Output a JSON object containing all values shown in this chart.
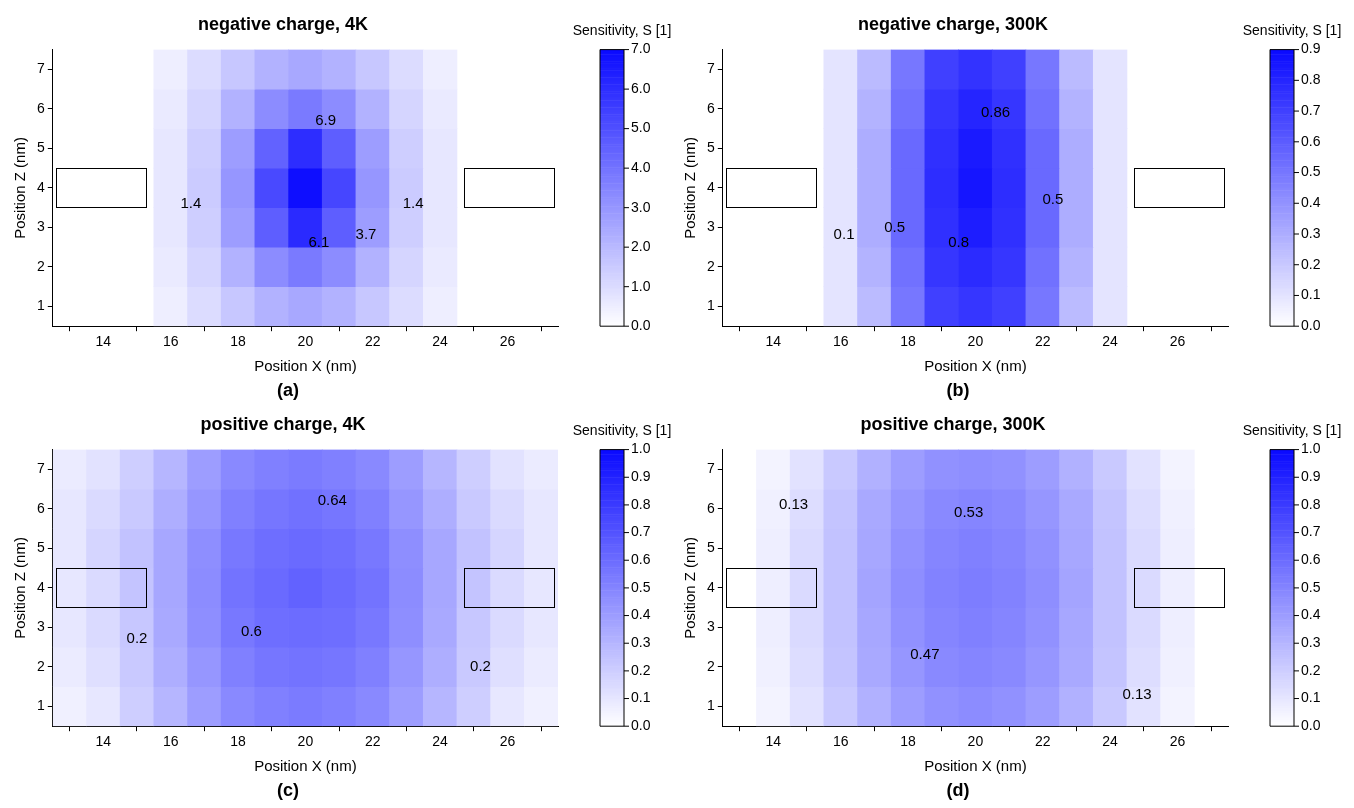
{
  "chart_data": [
    {
      "type": "heatmap",
      "title": "negative charge, 4K",
      "xlabel": "Position X (nm)",
      "ylabel": "Position Z (nm)",
      "clabel": "Sensitivity, S [1]",
      "x": [
        13,
        14,
        15,
        16,
        17,
        18,
        19,
        20,
        21,
        22,
        23,
        24,
        25,
        26,
        27
      ],
      "xlim": [
        12.5,
        27.5
      ],
      "xticks": [
        14,
        16,
        18,
        20,
        22,
        24,
        26
      ],
      "y_categories": [
        "7",
        "6",
        "5",
        "4",
        "3",
        "2",
        "1"
      ],
      "cells": [
        [
          null,
          null,
          null,
          0.5,
          1.0,
          1.6,
          2.2,
          2.5,
          2.2,
          1.6,
          1.0,
          0.5,
          null,
          null,
          null
        ],
        [
          null,
          null,
          null,
          0.6,
          1.2,
          2.2,
          3.3,
          3.8,
          3.3,
          2.2,
          1.2,
          0.6,
          null,
          null,
          null
        ],
        [
          null,
          null,
          null,
          0.7,
          1.4,
          2.8,
          4.5,
          6.0,
          4.6,
          2.8,
          1.4,
          0.7,
          null,
          null,
          null
        ],
        [
          null,
          null,
          null,
          0.7,
          1.5,
          3.0,
          5.2,
          6.9,
          5.3,
          3.0,
          1.5,
          0.7,
          null,
          null,
          null
        ],
        [
          null,
          null,
          null,
          0.7,
          1.4,
          2.8,
          4.6,
          6.1,
          4.6,
          2.8,
          1.4,
          0.7,
          null,
          null,
          null
        ],
        [
          null,
          null,
          null,
          0.6,
          1.2,
          2.2,
          3.3,
          3.8,
          3.3,
          2.2,
          1.2,
          0.6,
          null,
          null,
          null
        ],
        [
          null,
          null,
          null,
          0.5,
          1.0,
          1.6,
          2.2,
          2.5,
          2.2,
          1.6,
          1.0,
          0.5,
          null,
          null,
          null
        ]
      ],
      "clim": [
        0,
        7
      ],
      "cticks": [
        {
          "value": 0,
          "label": "0.0"
        },
        {
          "value": 1,
          "label": "1.0"
        },
        {
          "value": 2,
          "label": "2.0"
        },
        {
          "value": 3,
          "label": "3.0"
        },
        {
          "value": 4,
          "label": "4.0"
        },
        {
          "value": 5,
          "label": "5.0"
        },
        {
          "value": 6,
          "label": "6.0"
        },
        {
          "value": 7,
          "label": "7.0"
        }
      ],
      "annotations": [
        "6.9",
        "6.1",
        "3.7",
        "1.4",
        "1.4",
        "(a)"
      ]
    },
    {
      "type": "heatmap",
      "title": "negative charge, 300K",
      "xlabel": "Position X (nm)",
      "ylabel": "Position Z (nm)",
      "clabel": "Sensitivity, S [1]",
      "x": [
        13,
        14,
        15,
        16,
        17,
        18,
        19,
        20,
        21,
        22,
        23,
        24,
        25,
        26,
        27
      ],
      "xlim": [
        12.5,
        27.5
      ],
      "xticks": [
        14,
        16,
        18,
        20,
        22,
        24,
        26
      ],
      "y_categories": [
        "7",
        "6",
        "5",
        "4",
        "3",
        "2",
        "1"
      ],
      "cells": [
        [
          null,
          null,
          null,
          0.1,
          0.25,
          0.5,
          0.7,
          0.75,
          0.7,
          0.5,
          0.25,
          0.1,
          null,
          null,
          null
        ],
        [
          null,
          null,
          null,
          0.1,
          0.28,
          0.52,
          0.74,
          0.8,
          0.74,
          0.52,
          0.28,
          0.1,
          null,
          null,
          null
        ],
        [
          null,
          null,
          null,
          0.1,
          0.3,
          0.55,
          0.76,
          0.84,
          0.76,
          0.55,
          0.3,
          0.1,
          null,
          null,
          null
        ],
        [
          null,
          null,
          null,
          0.1,
          0.3,
          0.55,
          0.77,
          0.86,
          0.77,
          0.55,
          0.3,
          0.1,
          null,
          null,
          null
        ],
        [
          null,
          null,
          null,
          0.1,
          0.3,
          0.55,
          0.76,
          0.83,
          0.76,
          0.55,
          0.3,
          0.1,
          null,
          null,
          null
        ],
        [
          null,
          null,
          null,
          0.1,
          0.28,
          0.52,
          0.74,
          0.78,
          0.74,
          0.52,
          0.28,
          0.1,
          null,
          null,
          null
        ],
        [
          null,
          null,
          null,
          0.1,
          0.25,
          0.5,
          0.7,
          0.74,
          0.7,
          0.5,
          0.25,
          0.1,
          null,
          null,
          null
        ]
      ],
      "clim": [
        0,
        0.9
      ],
      "cticks": [
        {
          "value": 0,
          "label": "0.0"
        },
        0.1,
        0.2,
        0.3,
        0.4,
        0.5,
        0.6,
        0.7,
        0.8,
        0.9
      ],
      "annotations": [
        "0.86",
        "0.8",
        "0.1",
        "0.5",
        "0.5",
        "(b)"
      ]
    },
    {
      "type": "heatmap",
      "title": "positive charge, 4K",
      "xlabel": "Position X (nm)",
      "ylabel": "Position Z (nm)",
      "clabel": "Sensitivity, S [1]",
      "x": [
        13,
        14,
        15,
        16,
        17,
        18,
        19,
        20,
        21,
        22,
        23,
        24,
        25,
        26,
        27
      ],
      "xlim": [
        12.5,
        27.5
      ],
      "xticks": [
        14,
        16,
        18,
        20,
        22,
        24,
        26
      ],
      "y_categories": [
        "7",
        "6",
        "5",
        "4",
        "3",
        "2",
        "1"
      ],
      "cells": [
        [
          0.08,
          0.12,
          0.2,
          0.3,
          0.4,
          0.48,
          0.52,
          0.54,
          0.52,
          0.48,
          0.4,
          0.3,
          0.2,
          0.12,
          0.08
        ],
        [
          0.1,
          0.15,
          0.22,
          0.33,
          0.43,
          0.52,
          0.56,
          0.58,
          0.56,
          0.52,
          0.43,
          0.33,
          0.22,
          0.15,
          0.1
        ],
        [
          0.1,
          0.17,
          0.25,
          0.36,
          0.46,
          0.55,
          0.59,
          0.61,
          0.59,
          0.55,
          0.46,
          0.36,
          0.25,
          0.17,
          0.1
        ],
        [
          0.1,
          0.15,
          0.24,
          0.36,
          0.47,
          0.57,
          0.61,
          0.64,
          0.61,
          0.57,
          0.47,
          0.36,
          0.24,
          0.15,
          0.1
        ],
        [
          0.1,
          0.15,
          0.23,
          0.35,
          0.46,
          0.55,
          0.59,
          0.6,
          0.59,
          0.55,
          0.46,
          0.35,
          0.23,
          0.15,
          0.1
        ],
        [
          0.08,
          0.13,
          0.22,
          0.33,
          0.43,
          0.52,
          0.56,
          0.57,
          0.56,
          0.52,
          0.43,
          0.33,
          0.22,
          0.13,
          0.08
        ],
        [
          0.06,
          0.1,
          0.2,
          0.3,
          0.4,
          0.48,
          0.52,
          0.54,
          0.52,
          0.48,
          0.4,
          0.3,
          0.2,
          0.1,
          0.06
        ]
      ],
      "clim": [
        0,
        1
      ],
      "cticks": [
        {
          "value": 0,
          "label": "0.0"
        },
        0.1,
        0.2,
        0.3,
        0.4,
        0.5,
        0.6,
        0.7,
        0.8,
        0.9,
        {
          "value": 1,
          "label": "1.0"
        }
      ],
      "annotations": [
        "0.64",
        "0.6",
        "0.2",
        "0.2",
        "(c)"
      ]
    },
    {
      "type": "heatmap",
      "title": "positive charge, 300K",
      "xlabel": "Position X (nm)",
      "ylabel": "Position Z (nm)",
      "clabel": "Sensitivity, S [1]",
      "x": [
        13,
        14,
        15,
        16,
        17,
        18,
        19,
        20,
        21,
        22,
        23,
        24,
        25,
        26,
        27
      ],
      "xlim": [
        12.5,
        27.5
      ],
      "xticks": [
        14,
        16,
        18,
        20,
        22,
        24,
        26
      ],
      "y_categories": [
        "7",
        "6",
        "5",
        "4",
        "3",
        "2",
        "1"
      ],
      "cells": [
        [
          null,
          0.05,
          0.12,
          0.22,
          0.32,
          0.4,
          0.45,
          0.46,
          0.45,
          0.4,
          0.32,
          0.22,
          0.12,
          0.05,
          null
        ],
        [
          null,
          0.06,
          0.14,
          0.24,
          0.35,
          0.43,
          0.48,
          0.5,
          0.48,
          0.43,
          0.35,
          0.24,
          0.14,
          0.06,
          null
        ],
        [
          null,
          0.07,
          0.15,
          0.25,
          0.36,
          0.45,
          0.5,
          0.52,
          0.5,
          0.45,
          0.36,
          0.25,
          0.15,
          0.07,
          null
        ],
        [
          null,
          0.07,
          0.15,
          0.25,
          0.37,
          0.46,
          0.51,
          0.53,
          0.51,
          0.46,
          0.37,
          0.25,
          0.15,
          0.07,
          null
        ],
        [
          null,
          0.07,
          0.15,
          0.25,
          0.36,
          0.45,
          0.5,
          0.52,
          0.5,
          0.45,
          0.36,
          0.25,
          0.15,
          0.07,
          null
        ],
        [
          null,
          0.06,
          0.14,
          0.24,
          0.35,
          0.43,
          0.48,
          0.5,
          0.48,
          0.43,
          0.35,
          0.24,
          0.14,
          0.06,
          null
        ],
        [
          null,
          0.05,
          0.12,
          0.22,
          0.32,
          0.4,
          0.45,
          0.47,
          0.45,
          0.4,
          0.32,
          0.22,
          0.12,
          0.05,
          null
        ]
      ],
      "clim": [
        0,
        1
      ],
      "cticks": [
        {
          "value": 0,
          "label": "0.0"
        },
        0.1,
        0.2,
        0.3,
        0.4,
        0.5,
        0.6,
        0.7,
        0.8,
        0.9,
        {
          "value": 1,
          "label": "1.0"
        }
      ],
      "annotations": [
        "0.13",
        "0.53",
        "0.47",
        "0.13",
        "(d)"
      ]
    }
  ]
}
